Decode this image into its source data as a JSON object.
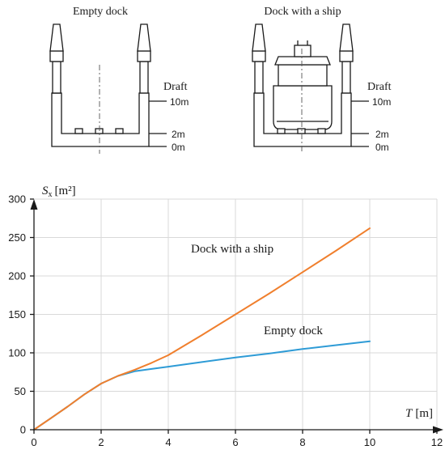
{
  "diagram": {
    "left_title": "Empty dock",
    "right_title": "Dock with a ship",
    "draft_label": "Draft",
    "levels": [
      "10m",
      "2m",
      "0m"
    ]
  },
  "chart_data": {
    "type": "line",
    "xlabel": {
      "var": "T",
      "unit": "[m]"
    },
    "ylabel": {
      "var": "S",
      "sub": "x",
      "unit": "[m²]"
    },
    "xlim": [
      0,
      12
    ],
    "ylim": [
      0,
      300
    ],
    "xticks": [
      "0",
      "2",
      "4",
      "6",
      "8",
      "10",
      "12"
    ],
    "yticks": [
      "0",
      "50",
      "100",
      "150",
      "200",
      "250",
      "300"
    ],
    "grid": true,
    "series": [
      {
        "name": "Dock with a ship",
        "color": "#f07f2d",
        "x": [
          0,
          0.5,
          1,
          1.5,
          2,
          2.5,
          3,
          3.5,
          4,
          5,
          6,
          7,
          8,
          9,
          10
        ],
        "y": [
          0,
          15,
          30,
          46,
          60,
          70,
          78,
          87,
          97,
          123,
          150,
          177,
          205,
          233,
          262
        ]
      },
      {
        "name": "Empty dock",
        "color": "#2e9bd6",
        "x": [
          0,
          0.5,
          1,
          1.5,
          2,
          2.5,
          3,
          3.5,
          4,
          5,
          6,
          7,
          8,
          9,
          10
        ],
        "y": [
          0,
          15,
          30,
          46,
          60,
          70,
          76,
          79,
          82,
          88,
          94,
          99,
          105,
          110,
          115
        ]
      }
    ]
  }
}
